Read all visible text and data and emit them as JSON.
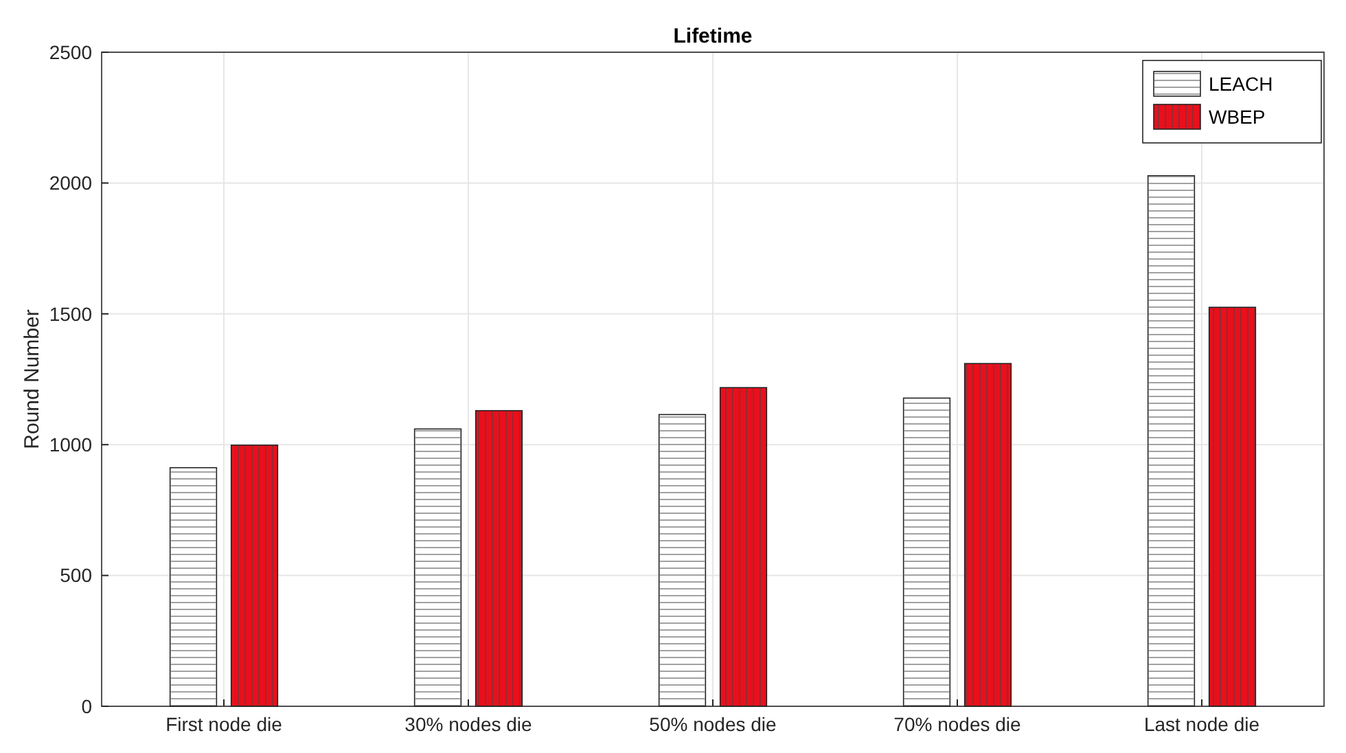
{
  "chart_data": {
    "type": "bar",
    "title": "Lifetime",
    "ylabel": "Round Number",
    "categories": [
      "First node die",
      "30% nodes die",
      "50% nodes die",
      "70% nodes die",
      "Last node die"
    ],
    "series": [
      {
        "name": "LEACH",
        "color": "#ffffff",
        "values": [
          912,
          1060,
          1115,
          1178,
          2028
        ]
      },
      {
        "name": "WBEP",
        "color": "#e8101c",
        "values": [
          998,
          1130,
          1218,
          1310,
          1525
        ]
      }
    ],
    "ylim": [
      0,
      2500
    ],
    "yticks": [
      0,
      500,
      1000,
      1500,
      2000,
      2500
    ],
    "grid": true,
    "legend": "top right"
  }
}
